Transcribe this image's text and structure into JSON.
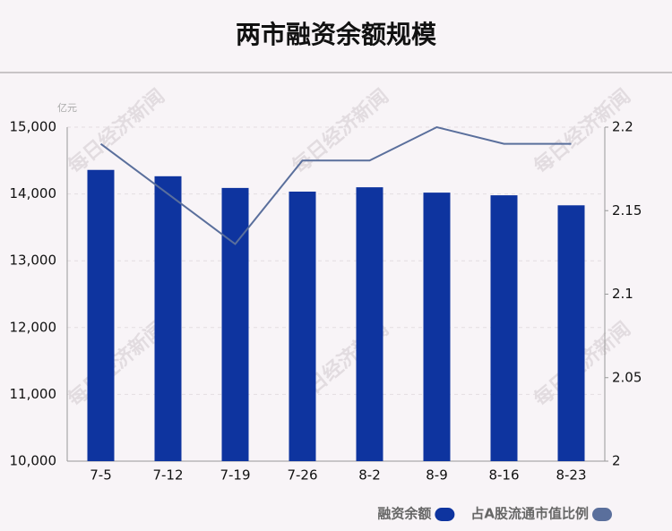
{
  "chart_data": {
    "type": "bar-line",
    "title": "两市融资余额规模",
    "y_unit": "亿元",
    "watermark": "每日经济新闻",
    "categories": [
      "7-5",
      "7-12",
      "7-19",
      "7-26",
      "8-2",
      "8-9",
      "8-16",
      "8-23"
    ],
    "series": [
      {
        "name": "融资余额",
        "type": "bar",
        "color": "#0e349f",
        "values": [
          14360,
          14265,
          14090,
          14035,
          14100,
          14020,
          13980,
          13830
        ]
      },
      {
        "name": "占A股流通市值比例",
        "type": "line",
        "axis": "y2",
        "color": "#5a6f9c",
        "values": [
          2.19,
          2.16,
          2.13,
          2.18,
          2.18,
          2.2,
          2.19,
          2.19
        ]
      }
    ],
    "ylim": [
      10000,
      15000
    ],
    "yticks": [
      {
        "value": 10000,
        "label": "10,000"
      },
      {
        "value": 11000,
        "label": "11,000"
      },
      {
        "value": 12000,
        "label": "12,000"
      },
      {
        "value": 13000,
        "label": "13,000"
      },
      {
        "value": 14000,
        "label": "14,000"
      },
      {
        "value": 15000,
        "label": "15,000"
      }
    ],
    "y2lim": [
      2,
      2.2
    ],
    "y2ticks": [
      2,
      2.05,
      2.1,
      2.15,
      2.2
    ],
    "grid": true,
    "legend": "bottom-right"
  }
}
